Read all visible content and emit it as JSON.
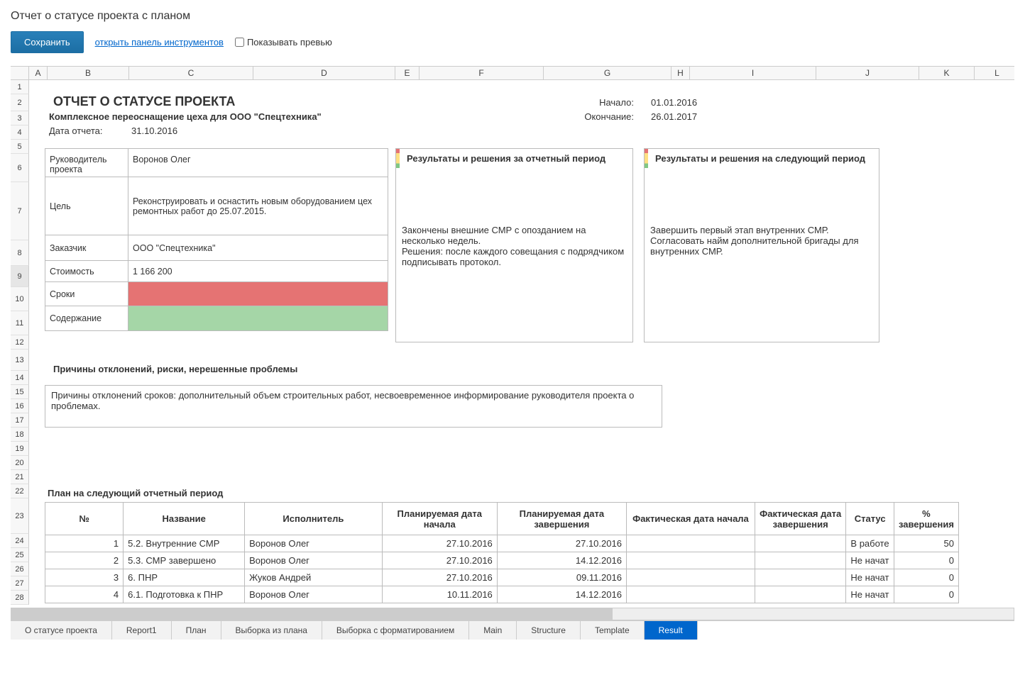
{
  "page": {
    "title": "Отчет о статусе проекта с планом"
  },
  "toolbar": {
    "save_label": "Сохранить",
    "tools_link": "открыть панель инструментов",
    "preview_label": "Показывать превью"
  },
  "columns": [
    "",
    "A",
    "B",
    "C",
    "D",
    "E",
    "F",
    "G",
    "H",
    "I",
    "J",
    "K",
    "L"
  ],
  "rows": [
    "1",
    "2",
    "3",
    "4",
    "5",
    "6",
    "7",
    "8",
    "9",
    "10",
    "11",
    "12",
    "13",
    "14",
    "15",
    "16",
    "17",
    "18",
    "19",
    "20",
    "21",
    "22",
    "23",
    "24",
    "25",
    "26",
    "27",
    "28"
  ],
  "report": {
    "title": "ОТЧЕТ О СТАТУСЕ ПРОЕКТА",
    "subtitle": "Комплексное переоснащение цеха для ООО \"Спецтехника\"",
    "report_date_label": "Дата отчета:",
    "report_date": "31.10.2016",
    "start_label": "Начало:",
    "start_date": "01.01.2016",
    "end_label": "Окончание:",
    "end_date": "26.01.2017"
  },
  "info": {
    "manager_label": "Руководитель проекта",
    "manager": "Воронов Олег",
    "goal_label": "Цель",
    "goal": "Реконструировать и оснастить новым оборудованием цех ремонтных работ до 25.07.2015.",
    "customer_label": "Заказчик",
    "customer": "ООО \"Спецтехника\"",
    "cost_label": "Стоимость",
    "cost": "1 166 200",
    "schedule_label": "Сроки",
    "schedule_color": "#e57373",
    "scope_label": "Содержание",
    "scope_color": "#a5d6a7"
  },
  "results_past": {
    "header": "Результаты и решения за отчетный период",
    "body": "Закончены внешние СМР с опозданием на несколько недель.\nРешения: после каждого совещания с подрядчиком подписывать протокол."
  },
  "results_next": {
    "header": "Результаты и решения на следующий период",
    "body": "Завершить первый этап внутренних СМР. Согласовать найм дополнительной бригады для внутренних СМР."
  },
  "problems": {
    "header": "Причины отклонений, риски, нерешенные проблемы",
    "body": "Причины отклонений сроков: дополнительный объем строительных работ, несвоевременное информирование руководителя проекта о проблемах."
  },
  "plan": {
    "header": "План на следующий отчетный период",
    "columns": [
      "№",
      "Название",
      "Исполнитель",
      "Планируемая дата начала",
      "Планируемая дата завершения",
      "Фактическая дата начала",
      "Фактическая дата завершения",
      "Статус",
      "% завершения"
    ],
    "rows": [
      {
        "n": "1",
        "name": "5.2. Внутренние СМР",
        "owner": "Воронов Олег",
        "pstart": "27.10.2016",
        "pend": "27.10.2016",
        "fstart": "",
        "fend": "",
        "status": "В работе",
        "pct": "50"
      },
      {
        "n": "2",
        "name": "5.3. СМР завершено",
        "owner": "Воронов Олег",
        "pstart": "27.10.2016",
        "pend": "14.12.2016",
        "fstart": "",
        "fend": "",
        "status": "Не начат",
        "pct": "0"
      },
      {
        "n": "3",
        "name": "6. ПНР",
        "owner": "Жуков Андрей",
        "pstart": "27.10.2016",
        "pend": "09.11.2016",
        "fstart": "",
        "fend": "",
        "status": "Не начат",
        "pct": "0"
      },
      {
        "n": "4",
        "name": "6.1. Подготовка к ПНР",
        "owner": "Воронов Олег",
        "pstart": "10.11.2016",
        "pend": "14.12.2016",
        "fstart": "",
        "fend": "",
        "status": "Не начат",
        "pct": "0"
      }
    ]
  },
  "tabs": {
    "items": [
      "О статусе проекта",
      "Report1",
      "План",
      "Выборка из плана",
      "Выборка с форматированием",
      "Main",
      "Structure",
      "Template",
      "Result"
    ],
    "active_index": 8
  },
  "style": {
    "row_heights": {
      "6": 44,
      "7": 60,
      "8": 36,
      "9": 30,
      "10": 34,
      "11": 34,
      "23": 50
    }
  }
}
